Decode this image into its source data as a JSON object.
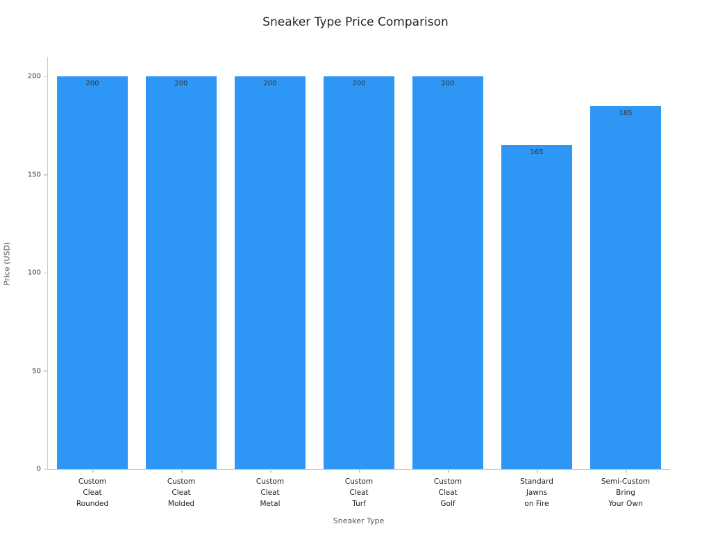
{
  "chart_data": {
    "type": "bar",
    "title": "Sneaker Type Price Comparison",
    "xlabel": "Sneaker Type",
    "ylabel": "Price (USD)",
    "categories": [
      "Custom Cleat Rounded",
      "Custom Cleat Molded",
      "Custom Cleat Metal",
      "Custom Cleat Turf",
      "Custom Cleat Golf",
      "Standard Jawns on Fire",
      "Semi-Custom Bring Your Own"
    ],
    "category_lines": [
      [
        "Custom",
        "Cleat",
        "Rounded"
      ],
      [
        "Custom",
        "Cleat",
        "Molded"
      ],
      [
        "Custom",
        "Cleat",
        "Metal"
      ],
      [
        "Custom",
        "Cleat",
        "Turf"
      ],
      [
        "Custom",
        "Cleat",
        "Golf"
      ],
      [
        "Standard",
        "Jawns",
        "on Fire"
      ],
      [
        "Semi-Custom",
        "Bring",
        "Your Own"
      ]
    ],
    "values": [
      200,
      200,
      200,
      200,
      200,
      165,
      185
    ],
    "value_labels": [
      "200",
      "200",
      "200",
      "200",
      "200",
      "165",
      "185"
    ],
    "yticks": [
      0,
      50,
      100,
      150,
      200
    ],
    "ylim": [
      0,
      210
    ],
    "bar_color": "#2E96F5",
    "grid": false,
    "legend": null,
    "background_color": "#ffffff"
  }
}
